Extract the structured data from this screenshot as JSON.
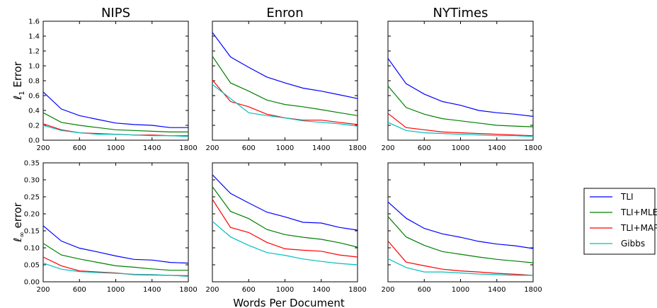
{
  "figure": {
    "xlabel": "Words Per Document",
    "row_ylabels": [
      {
        "prefix": "ℓ",
        "sub": "1",
        "suffix": "Error"
      },
      {
        "prefix": "ℓ",
        "sub": "∞",
        "suffix": "error"
      }
    ]
  },
  "legend": {
    "placement": "right, between rows",
    "entries": [
      {
        "name": "TLI",
        "color": "#0000ff"
      },
      {
        "name": "TLI+MLE",
        "color": "#008000"
      },
      {
        "name": "TLI+MAP",
        "color": "#ff0000"
      },
      {
        "name": "Gibbs",
        "color": "#00bfbf"
      }
    ]
  },
  "chart_data": [
    {
      "type": "line",
      "title": "NIPS",
      "row": 0,
      "col": 0,
      "x": [
        200,
        400,
        600,
        800,
        1000,
        1200,
        1400,
        1600,
        1800
      ],
      "xlim": [
        200,
        1800
      ],
      "xticks": [
        200,
        600,
        1000,
        1400,
        1800
      ],
      "ylim": [
        0,
        1.6
      ],
      "yticks": [
        0.0,
        0.2,
        0.4,
        0.6,
        0.8,
        1.0,
        1.2,
        1.4,
        1.6
      ],
      "ytick_labels": true,
      "series": [
        {
          "name": "TLI",
          "color": "#0000ff",
          "values": [
            0.65,
            0.42,
            0.33,
            0.28,
            0.23,
            0.21,
            0.2,
            0.17,
            0.17
          ]
        },
        {
          "name": "TLI+MLE",
          "color": "#008000",
          "values": [
            0.37,
            0.24,
            0.2,
            0.17,
            0.14,
            0.13,
            0.12,
            0.11,
            0.11
          ]
        },
        {
          "name": "TLI+MAP",
          "color": "#ff0000",
          "values": [
            0.22,
            0.14,
            0.1,
            0.09,
            0.08,
            0.07,
            0.07,
            0.06,
            0.06
          ]
        },
        {
          "name": "Gibbs",
          "color": "#00bfbf",
          "values": [
            0.2,
            0.13,
            0.1,
            0.08,
            0.08,
            0.07,
            0.06,
            0.06,
            0.05
          ]
        }
      ]
    },
    {
      "type": "line",
      "title": "Enron",
      "row": 0,
      "col": 1,
      "x": [
        200,
        400,
        600,
        800,
        1000,
        1200,
        1400,
        1600,
        1800
      ],
      "xlim": [
        200,
        1800
      ],
      "xticks": [
        200,
        600,
        1000,
        1400,
        1800
      ],
      "ylim": [
        0,
        1.6
      ],
      "yticks": [
        0.0,
        0.2,
        0.4,
        0.6,
        0.8,
        1.0,
        1.2,
        1.4,
        1.6
      ],
      "ytick_labels": false,
      "series": [
        {
          "name": "TLI",
          "color": "#0000ff",
          "values": [
            1.45,
            1.12,
            0.98,
            0.85,
            0.77,
            0.7,
            0.66,
            0.61,
            0.56
          ]
        },
        {
          "name": "TLI+MLE",
          "color": "#008000",
          "values": [
            1.13,
            0.77,
            0.66,
            0.54,
            0.48,
            0.45,
            0.41,
            0.37,
            0.33
          ]
        },
        {
          "name": "TLI+MAP",
          "color": "#ff0000",
          "values": [
            0.81,
            0.52,
            0.45,
            0.35,
            0.3,
            0.27,
            0.27,
            0.24,
            0.21
          ]
        },
        {
          "name": "Gibbs",
          "color": "#00bfbf",
          "values": [
            0.75,
            0.56,
            0.37,
            0.33,
            0.3,
            0.26,
            0.24,
            0.22,
            0.19
          ]
        }
      ]
    },
    {
      "type": "line",
      "title": "NYTimes",
      "row": 0,
      "col": 2,
      "x": [
        200,
        400,
        600,
        800,
        1000,
        1200,
        1400,
        1600,
        1800
      ],
      "xlim": [
        200,
        1800
      ],
      "xticks": [
        200,
        600,
        1000,
        1400,
        1800
      ],
      "ylim": [
        0,
        1.6
      ],
      "yticks": [
        0.0,
        0.2,
        0.4,
        0.6,
        0.8,
        1.0,
        1.2,
        1.4,
        1.6
      ],
      "ytick_labels": false,
      "series": [
        {
          "name": "TLI",
          "color": "#0000ff",
          "values": [
            1.1,
            0.76,
            0.62,
            0.52,
            0.47,
            0.4,
            0.37,
            0.35,
            0.32
          ]
        },
        {
          "name": "TLI+MLE",
          "color": "#008000",
          "values": [
            0.73,
            0.44,
            0.35,
            0.29,
            0.26,
            0.23,
            0.2,
            0.19,
            0.18
          ]
        },
        {
          "name": "TLI+MAP",
          "color": "#ff0000",
          "values": [
            0.36,
            0.17,
            0.14,
            0.11,
            0.1,
            0.09,
            0.08,
            0.07,
            0.06
          ]
        },
        {
          "name": "Gibbs",
          "color": "#00bfbf",
          "values": [
            0.24,
            0.13,
            0.1,
            0.09,
            0.08,
            0.07,
            0.06,
            0.06,
            0.05
          ]
        }
      ]
    },
    {
      "type": "line",
      "title": "",
      "row": 1,
      "col": 0,
      "x": [
        200,
        400,
        600,
        800,
        1000,
        1200,
        1400,
        1600,
        1800
      ],
      "xlim": [
        200,
        1800
      ],
      "xticks": [
        200,
        600,
        1000,
        1400,
        1800
      ],
      "ylim": [
        0,
        0.35
      ],
      "yticks": [
        0.0,
        0.05,
        0.1,
        0.15,
        0.2,
        0.25,
        0.3,
        0.35
      ],
      "ytick_labels": true,
      "series": [
        {
          "name": "TLI",
          "color": "#0000ff",
          "values": [
            0.165,
            0.12,
            0.099,
            0.088,
            0.076,
            0.066,
            0.064,
            0.057,
            0.055
          ]
        },
        {
          "name": "TLI+MLE",
          "color": "#008000",
          "values": [
            0.113,
            0.079,
            0.067,
            0.057,
            0.047,
            0.043,
            0.038,
            0.034,
            0.034
          ]
        },
        {
          "name": "TLI+MAP",
          "color": "#ff0000",
          "values": [
            0.073,
            0.047,
            0.032,
            0.029,
            0.026,
            0.021,
            0.02,
            0.019,
            0.018
          ]
        },
        {
          "name": "Gibbs",
          "color": "#00bfbf",
          "values": [
            0.055,
            0.037,
            0.03,
            0.027,
            0.025,
            0.022,
            0.021,
            0.019,
            0.016
          ]
        }
      ]
    },
    {
      "type": "line",
      "title": "",
      "row": 1,
      "col": 1,
      "x": [
        200,
        400,
        600,
        800,
        1000,
        1200,
        1400,
        1600,
        1800
      ],
      "xlim": [
        200,
        1800
      ],
      "xticks": [
        200,
        600,
        1000,
        1400,
        1800
      ],
      "ylim": [
        0,
        0.35
      ],
      "yticks": [
        0.0,
        0.05,
        0.1,
        0.15,
        0.2,
        0.25,
        0.3,
        0.35
      ],
      "ytick_labels": false,
      "series": [
        {
          "name": "TLI",
          "color": "#0000ff",
          "values": [
            0.315,
            0.26,
            0.232,
            0.205,
            0.191,
            0.175,
            0.173,
            0.16,
            0.152
          ]
        },
        {
          "name": "TLI+MLE",
          "color": "#008000",
          "values": [
            0.28,
            0.207,
            0.186,
            0.154,
            0.139,
            0.131,
            0.125,
            0.115,
            0.102
          ]
        },
        {
          "name": "TLI+MAP",
          "color": "#ff0000",
          "values": [
            0.243,
            0.16,
            0.145,
            0.116,
            0.097,
            0.093,
            0.09,
            0.079,
            0.073
          ]
        },
        {
          "name": "Gibbs",
          "color": "#00bfbf",
          "values": [
            0.178,
            0.132,
            0.107,
            0.086,
            0.078,
            0.067,
            0.06,
            0.054,
            0.05
          ]
        }
      ]
    },
    {
      "type": "line",
      "title": "",
      "row": 1,
      "col": 2,
      "x": [
        200,
        400,
        600,
        800,
        1000,
        1200,
        1400,
        1600,
        1800
      ],
      "xlim": [
        200,
        1800
      ],
      "xticks": [
        200,
        600,
        1000,
        1400,
        1800
      ],
      "ylim": [
        0,
        0.35
      ],
      "yticks": [
        0.0,
        0.05,
        0.1,
        0.15,
        0.2,
        0.25,
        0.3,
        0.35
      ],
      "ytick_labels": false,
      "series": [
        {
          "name": "TLI",
          "color": "#0000ff",
          "values": [
            0.235,
            0.187,
            0.157,
            0.141,
            0.131,
            0.119,
            0.111,
            0.106,
            0.098
          ]
        },
        {
          "name": "TLI+MLE",
          "color": "#008000",
          "values": [
            0.192,
            0.132,
            0.107,
            0.089,
            0.081,
            0.073,
            0.066,
            0.061,
            0.056
          ]
        },
        {
          "name": "TLI+MAP",
          "color": "#ff0000",
          "values": [
            0.12,
            0.058,
            0.047,
            0.037,
            0.032,
            0.029,
            0.025,
            0.022,
            0.019
          ]
        },
        {
          "name": "Gibbs",
          "color": "#00bfbf",
          "values": [
            0.068,
            0.042,
            0.029,
            0.029,
            0.026,
            0.023,
            0.021,
            0.019,
            0.019
          ]
        }
      ]
    }
  ]
}
